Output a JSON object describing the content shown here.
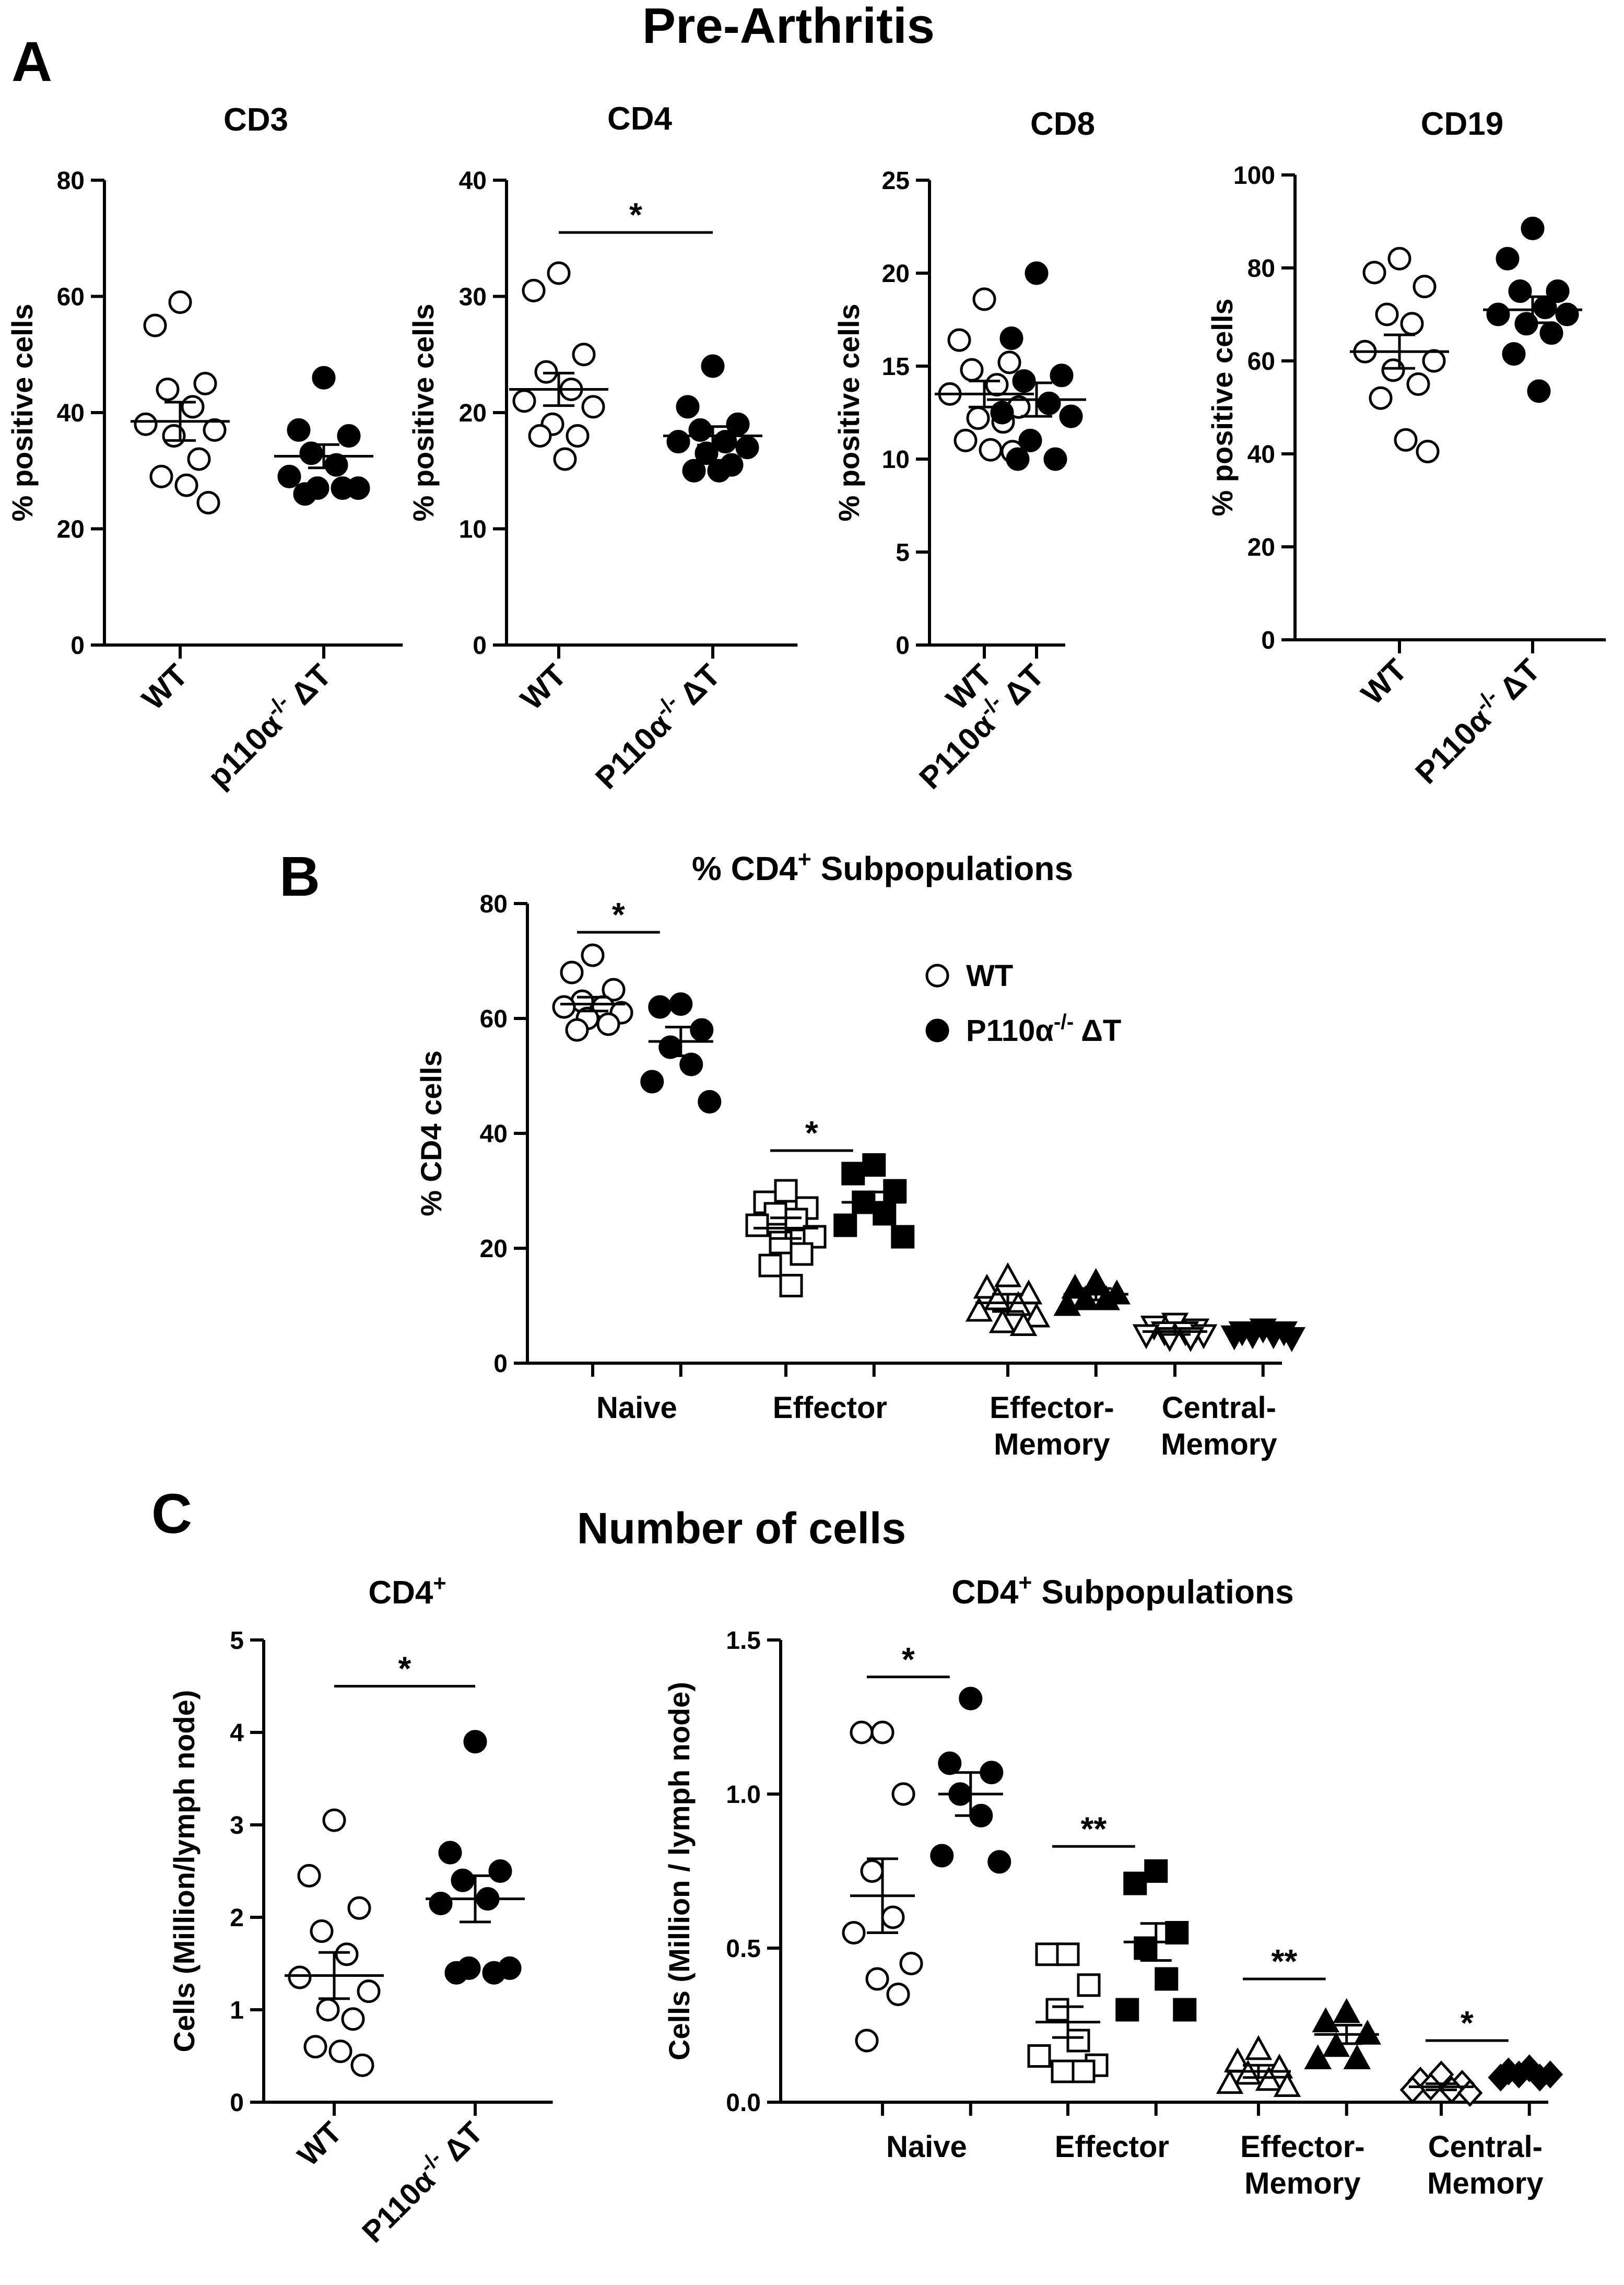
{
  "figure": {
    "title_a": "Pre-Arthritis",
    "title_c": "Number of cells",
    "panel_labels": [
      "A",
      "B",
      "C"
    ]
  },
  "chart_data": [
    {
      "id": "cd3",
      "type": "scatter",
      "title": "CD3",
      "ylabel": "% positive cells",
      "ylim": [
        0,
        80
      ],
      "yticks": [
        0,
        20,
        40,
        60,
        80
      ],
      "tick_labels": [
        "0",
        "20",
        "40",
        "60",
        "80"
      ],
      "categories": [
        {
          "label": "WT",
          "sup": "",
          "rest": ""
        },
        {
          "label": "p110α",
          "sup": "-/-",
          "rest": " ΔT"
        }
      ],
      "series": [
        {
          "name": "WT",
          "marker": "circle",
          "filled": false,
          "mean": 38.5,
          "sem": 3.3,
          "values": [
            59,
            55,
            45,
            44,
            41,
            38,
            37,
            36,
            32,
            29,
            27.5,
            24.5
          ]
        },
        {
          "name": "p110α-/- ΔT",
          "marker": "circle",
          "filled": true,
          "mean": 32.5,
          "sem": 2.0,
          "values": [
            46,
            37,
            36,
            33,
            31,
            29,
            27,
            27,
            27,
            26
          ]
        }
      ],
      "significance": []
    },
    {
      "id": "cd4",
      "type": "scatter",
      "title": "CD4",
      "ylabel": "% positive cells",
      "ylim": [
        0,
        40
      ],
      "yticks": [
        0,
        10,
        20,
        30,
        40
      ],
      "tick_labels": [
        "0",
        "10",
        "20",
        "30",
        "40"
      ],
      "categories": [
        {
          "label": "WT",
          "sup": "",
          "rest": ""
        },
        {
          "label": "P110α",
          "sup": "-/-",
          "rest": " ΔT"
        }
      ],
      "series": [
        {
          "name": "WT",
          "marker": "circle",
          "filled": false,
          "mean": 22.0,
          "sem": 1.4,
          "values": [
            32,
            30.5,
            25,
            23.5,
            22,
            21,
            20.5,
            19,
            18,
            18,
            16
          ]
        },
        {
          "name": "P110α-/- ΔT",
          "marker": "circle",
          "filled": true,
          "mean": 18.0,
          "sem": 0.8,
          "values": [
            24,
            20.5,
            19,
            18.5,
            17.5,
            17.5,
            17,
            16.5,
            15.5,
            15,
            15
          ]
        }
      ],
      "significance": [
        {
          "from": 0,
          "to": 1,
          "level": 35.5,
          "label": "*"
        }
      ]
    },
    {
      "id": "cd8",
      "type": "scatter",
      "title": "CD8",
      "ylabel": "% positive cells",
      "ylim": [
        0,
        25
      ],
      "yticks": [
        0,
        5,
        10,
        15,
        20,
        25
      ],
      "tick_labels": [
        "0",
        "5",
        "10",
        "15",
        "20",
        "25"
      ],
      "categories": [
        {
          "label": "WT",
          "sup": "",
          "rest": ""
        },
        {
          "label": "P110α",
          "sup": "-/-",
          "rest": " ΔT"
        }
      ],
      "series": [
        {
          "name": "WT",
          "marker": "circle",
          "filled": false,
          "mean": 13.5,
          "sem": 0.7,
          "values": [
            18.6,
            16.4,
            15.2,
            14.8,
            14,
            13.5,
            12.8,
            12.2,
            12,
            11,
            10.5,
            10.4
          ]
        },
        {
          "name": "P110α-/- ΔT",
          "marker": "circle",
          "filled": true,
          "mean": 13.2,
          "sem": 0.9,
          "values": [
            20,
            16.5,
            14.5,
            14.2,
            13,
            12.5,
            12.3,
            11,
            10,
            10
          ]
        }
      ],
      "significance": []
    },
    {
      "id": "cd19",
      "type": "scatter",
      "title": "CD19",
      "ylabel": "% positive cells",
      "ylim": [
        0,
        100
      ],
      "yticks": [
        0,
        20,
        40,
        60,
        80,
        100
      ],
      "tick_labels": [
        "0",
        "20",
        "40",
        "60",
        "80",
        "100"
      ],
      "categories": [
        {
          "label": "WT",
          "sup": "",
          "rest": ""
        },
        {
          "label": "P110α",
          "sup": "-/-",
          "rest": " ΔT"
        }
      ],
      "series": [
        {
          "name": "WT",
          "marker": "circle",
          "filled": false,
          "mean": 62,
          "sem": 3.6,
          "values": [
            82,
            79,
            76,
            70,
            68,
            62,
            60,
            58,
            55,
            52,
            43,
            40.5
          ]
        },
        {
          "name": "P110α-/- ΔT",
          "marker": "circle",
          "filled": true,
          "mean": 71,
          "sem": 2.8,
          "values": [
            88.5,
            82,
            75,
            75,
            71.5,
            70,
            70,
            68,
            66,
            61.5,
            53.5
          ]
        }
      ],
      "significance": []
    },
    {
      "id": "subpop_pct",
      "type": "scatter",
      "title": "% CD4",
      "title_sup": "+",
      "title_rest": " Subpopulations",
      "ylabel": "% CD4 cells",
      "ylim": [
        0,
        80
      ],
      "yticks": [
        0,
        20,
        40,
        60,
        80
      ],
      "tick_labels": [
        "0",
        "20",
        "40",
        "60",
        "80"
      ],
      "groups": [
        {
          "label": "Naive",
          "label2": ""
        },
        {
          "label": "Effector",
          "label2": ""
        },
        {
          "label": "Effector-",
          "label2": "Memory"
        },
        {
          "label": "Central-",
          "label2": "Memory"
        }
      ],
      "legend": {
        "position": "top-right",
        "entries": [
          {
            "label": "WT",
            "sup": "",
            "rest": "",
            "filled": false
          },
          {
            "label": "P110α",
            "sup": "-/-",
            "rest": " ΔT",
            "filled": true
          }
        ]
      },
      "series": [
        {
          "name": "WT",
          "filled": false,
          "markers": [
            "circle",
            "square",
            "triangle",
            "triangle-down"
          ],
          "means": [
            62.5,
            23.5,
            10.5,
            5.5
          ],
          "sems": [
            1.2,
            1.8,
            1.5,
            0.5
          ],
          "values": [
            [
              71,
              68,
              65,
              63,
              62,
              62,
              61,
              60,
              59,
              58
            ],
            [
              30,
              28,
              27,
              26,
              25,
              24,
              22,
              21,
              19,
              17,
              13.5
            ],
            [
              15,
              13,
              12,
              11,
              10,
              9,
              8,
              7,
              6.5
            ],
            [
              7,
              6.5,
              6,
              5.5,
              5.5,
              5,
              5,
              4.5,
              4.5
            ]
          ]
        },
        {
          "name": "P110α-/- ΔT",
          "filled": true,
          "markers": [
            "circle",
            "square",
            "triangle",
            "triangle-down"
          ],
          "means": [
            56,
            28,
            12,
            5.2
          ],
          "sems": [
            2.5,
            1.8,
            1.0,
            0.3
          ],
          "values": [
            [
              62.5,
              62,
              58,
              55,
              52,
              49,
              45.5
            ],
            [
              34.5,
              33,
              30,
              28,
              26,
              24,
              22
            ],
            [
              14,
              13,
              12,
              11,
              11,
              10
            ],
            [
              6,
              5.5,
              5.5,
              5,
              5,
              4.8,
              4.5
            ]
          ]
        }
      ],
      "significance": [
        {
          "group": 0,
          "level": 75,
          "label": "*"
        },
        {
          "group": 1,
          "level": 37,
          "label": "*"
        }
      ]
    },
    {
      "id": "cd4_count",
      "type": "scatter",
      "title": "CD4",
      "title_sup": "+",
      "title_rest": "",
      "ylabel": "Cells (Million/lymph node)",
      "ylim": [
        0,
        5
      ],
      "yticks": [
        0,
        1,
        2,
        3,
        4,
        5
      ],
      "tick_labels": [
        "0",
        "1",
        "2",
        "3",
        "4",
        "5"
      ],
      "categories": [
        {
          "label": "WT",
          "sup": "",
          "rest": ""
        },
        {
          "label": "P110α",
          "sup": "-/-",
          "rest": " ΔT"
        }
      ],
      "series": [
        {
          "name": "WT",
          "marker": "circle",
          "filled": false,
          "mean": 1.37,
          "sem": 0.25,
          "values": [
            3.05,
            2.45,
            2.1,
            1.85,
            1.6,
            1.35,
            1.2,
            1.0,
            0.9,
            0.6,
            0.55,
            0.4
          ]
        },
        {
          "name": "P110α-/- ΔT",
          "marker": "circle",
          "filled": true,
          "mean": 2.2,
          "sem": 0.25,
          "values": [
            3.9,
            2.7,
            2.5,
            2.4,
            2.2,
            2.15,
            1.45,
            1.45,
            1.4,
            1.4
          ]
        }
      ],
      "significance": [
        {
          "from": 0,
          "to": 1,
          "level": 4.5,
          "label": "*"
        }
      ]
    },
    {
      "id": "subpop_count",
      "type": "scatter",
      "title": "CD4",
      "title_sup": "+",
      "title_rest": " Subpopulations",
      "ylabel": "Cells (Million / lymph node)",
      "ylim": [
        0,
        1.5
      ],
      "yticks": [
        0,
        0.5,
        1.0,
        1.5
      ],
      "tick_labels": [
        "0.0",
        "0.5",
        "1.0",
        "1.5"
      ],
      "groups": [
        {
          "label": "Naive",
          "label2": ""
        },
        {
          "label": "Effector",
          "label2": ""
        },
        {
          "label": "Effector-",
          "label2": "Memory"
        },
        {
          "label": "Central-",
          "label2": "Memory"
        }
      ],
      "series": [
        {
          "name": "WT",
          "filled": false,
          "markers": [
            "circle",
            "square",
            "triangle",
            "diamond"
          ],
          "means": [
            0.67,
            0.26,
            0.1,
            0.05
          ],
          "sems": [
            0.12,
            0.05,
            0.02,
            0.01
          ],
          "values": [
            [
              1.2,
              1.2,
              1.0,
              0.75,
              0.6,
              0.55,
              0.45,
              0.4,
              0.35,
              0.2
            ],
            [
              0.48,
              0.48,
              0.38,
              0.3,
              0.2,
              0.15,
              0.12,
              0.1,
              0.1
            ],
            [
              0.17,
              0.13,
              0.11,
              0.09,
              0.07,
              0.06,
              0.05
            ],
            [
              0.09,
              0.07,
              0.06,
              0.05,
              0.04,
              0.04,
              0.03
            ]
          ]
        },
        {
          "name": "P110α-/- ΔT",
          "filled": true,
          "markers": [
            "circle",
            "square",
            "triangle",
            "diamond"
          ],
          "means": [
            1.0,
            0.52,
            0.22,
            0.09
          ],
          "sems": [
            0.07,
            0.06,
            0.03,
            0.01
          ],
          "values": [
            [
              1.31,
              1.1,
              1.07,
              1.0,
              0.93,
              0.8,
              0.78
            ],
            [
              0.75,
              0.71,
              0.55,
              0.5,
              0.4,
              0.3,
              0.3
            ],
            [
              0.29,
              0.26,
              0.22,
              0.18,
              0.14,
              0.14
            ],
            [
              0.11,
              0.1,
              0.09,
              0.09,
              0.08,
              0.08
            ]
          ]
        }
      ],
      "significance": [
        {
          "group": 0,
          "level": 1.38,
          "label": "*"
        },
        {
          "group": 1,
          "level": 0.83,
          "label": "**"
        },
        {
          "group": 2,
          "level": 0.4,
          "label": "**"
        },
        {
          "group": 3,
          "level": 0.2,
          "label": "*"
        }
      ]
    }
  ]
}
